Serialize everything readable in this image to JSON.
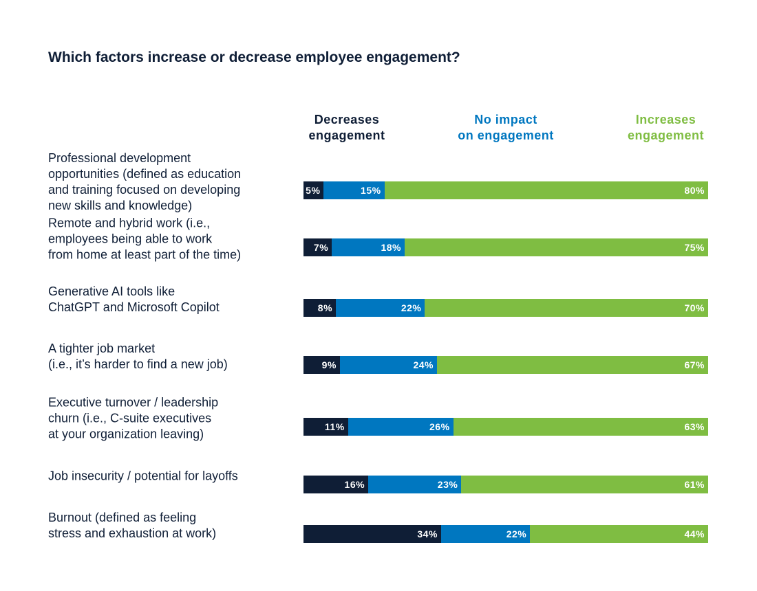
{
  "chart_data": {
    "type": "bar",
    "orientation": "horizontal",
    "stacked": true,
    "title": "Which factors increase or decrease employee engagement?",
    "categories": [
      "Professional development opportunities (defined as education and training focused on developing new skills and knowledge)",
      "Remote and hybrid work (i.e., employees being able to work from home at least part of the time)",
      "Generative AI tools like ChatGPT and Microsoft Copilot",
      "A tighter job market (i.e., it’s harder to find a new job)",
      "Executive turnover / leadership churn (i.e., C-suite executives at your organization leaving)",
      "Job insecurity / potential for layoffs",
      "Burnout (defined as feeling stress and exhaustion at work)"
    ],
    "category_lines": [
      [
        "Professional development",
        "opportunities (defined as education",
        "and training focused on developing",
        "new skills and knowledge)"
      ],
      [
        "Remote and hybrid work (i.e.,",
        "employees being able to work",
        "from home at least part of the time)"
      ],
      [
        "Generative AI tools like",
        "ChatGPT and Microsoft Copilot"
      ],
      [
        "A tighter job market",
        "(i.e., it’s harder to find a new job)"
      ],
      [
        "Executive turnover / leadership",
        "churn (i.e., C-suite executives",
        "at your organization leaving)"
      ],
      [
        "Job insecurity / potential for layoffs"
      ],
      [
        "Burnout (defined as feeling",
        "stress and exhaustion at work)"
      ]
    ],
    "series": [
      {
        "name": "Decreases engagement",
        "name_lines": [
          "Decreases",
          "engagement"
        ],
        "color": "#0f1e36",
        "values": [
          5,
          7,
          8,
          9,
          11,
          16,
          34
        ]
      },
      {
        "name": "No impact on engagement",
        "name_lines": [
          "No impact",
          "on engagement"
        ],
        "color": "#0077c0",
        "values": [
          15,
          18,
          22,
          24,
          26,
          23,
          22
        ]
      },
      {
        "name": "Increases engagement",
        "name_lines": [
          "Increases",
          "engagement"
        ],
        "color": "#7fbd42",
        "values": [
          80,
          75,
          70,
          67,
          63,
          61,
          44
        ]
      }
    ],
    "value_suffix": "%",
    "xlim": [
      0,
      100
    ],
    "legend_placement": "top",
    "grid": false
  }
}
